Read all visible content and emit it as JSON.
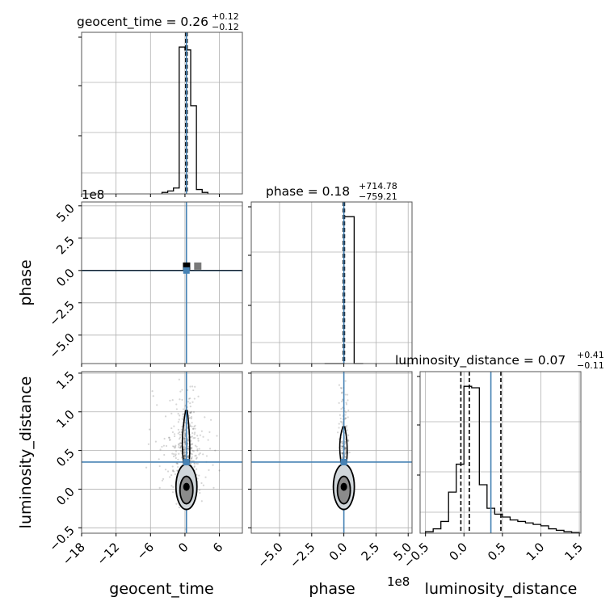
{
  "chart_data": {
    "type": "corner",
    "params": [
      "geocent_time",
      "phase",
      "luminosity_distance"
    ],
    "titles": [
      {
        "main": "geocent_time = 0.26",
        "plus": "+0.12",
        "minus": "−0.12"
      },
      {
        "main": "phase = 0.18",
        "plus": "+714.78",
        "minus": "−759.21"
      },
      {
        "main": "luminosity_distance = 0.07",
        "plus": "+0.41",
        "minus": "−0.11"
      }
    ],
    "axis_labels": {
      "x": [
        "geocent_time",
        "phase",
        "luminosity_distance"
      ],
      "y": [
        "phase",
        "luminosity_distance"
      ]
    },
    "offset_texts": {
      "phase_y": "1e8",
      "phase_x": "1e8"
    },
    "truth_color": "#4682b4",
    "truths": {
      "geocent_time": 0.26,
      "phase": 0.0,
      "luminosity_distance": 0.35
    },
    "axes": {
      "geocent_time": {
        "range": [
          -18,
          10
        ],
        "ticks": [
          -18,
          -12,
          -6,
          0,
          6
        ],
        "tick_labels": [
          "−18",
          "−12",
          "−6",
          "0",
          "6"
        ]
      },
      "phase": {
        "range": [
          -7.2,
          5.3
        ],
        "ticks": [
          -5.0,
          -2.5,
          0.0,
          2.5,
          5.0
        ],
        "tick_labels": [
          "−5.0",
          "−2.5",
          "0.0",
          "2.5",
          "5.0"
        ]
      },
      "luminosity_distance": {
        "range": [
          -0.57,
          1.52
        ],
        "ticks": [
          -0.5,
          0.0,
          0.5,
          1.0,
          1.5
        ],
        "tick_labels": [
          "−0.5",
          "0.0",
          "0.5",
          "1.0",
          "1.5"
        ]
      }
    },
    "histograms": {
      "geocent_time": {
        "bin_edges": [
          -4,
          -3,
          -2,
          -1,
          0,
          1,
          2,
          3,
          4
        ],
        "counts": [
          0.01,
          0.02,
          0.04,
          1.0,
          0.98,
          0.6,
          0.03,
          0.01
        ],
        "quantiles": [
          0.14,
          0.26,
          0.38
        ]
      },
      "phase": {
        "bin_edges": [
          -1.5,
          -0.8,
          0.0,
          0.8,
          1.5
        ],
        "counts": [
          0.0,
          0.0,
          1.0,
          0.0
        ],
        "quantiles": [
          -0.05,
          0.0,
          0.05
        ]
      },
      "luminosity_distance": {
        "bin_edges": [
          -0.5,
          -0.4,
          -0.3,
          -0.2,
          -0.1,
          0.0,
          0.1,
          0.2,
          0.3,
          0.4,
          0.5,
          0.6,
          0.7,
          0.8,
          0.9,
          1.0,
          1.1,
          1.2,
          1.3,
          1.4,
          1.5
        ],
        "counts": [
          0.01,
          0.03,
          0.08,
          0.28,
          0.47,
          1.0,
          0.99,
          0.33,
          0.17,
          0.13,
          0.11,
          0.09,
          0.08,
          0.07,
          0.06,
          0.05,
          0.03,
          0.02,
          0.01,
          0.005
        ],
        "quantiles": [
          -0.04,
          0.07,
          0.48
        ]
      }
    }
  }
}
